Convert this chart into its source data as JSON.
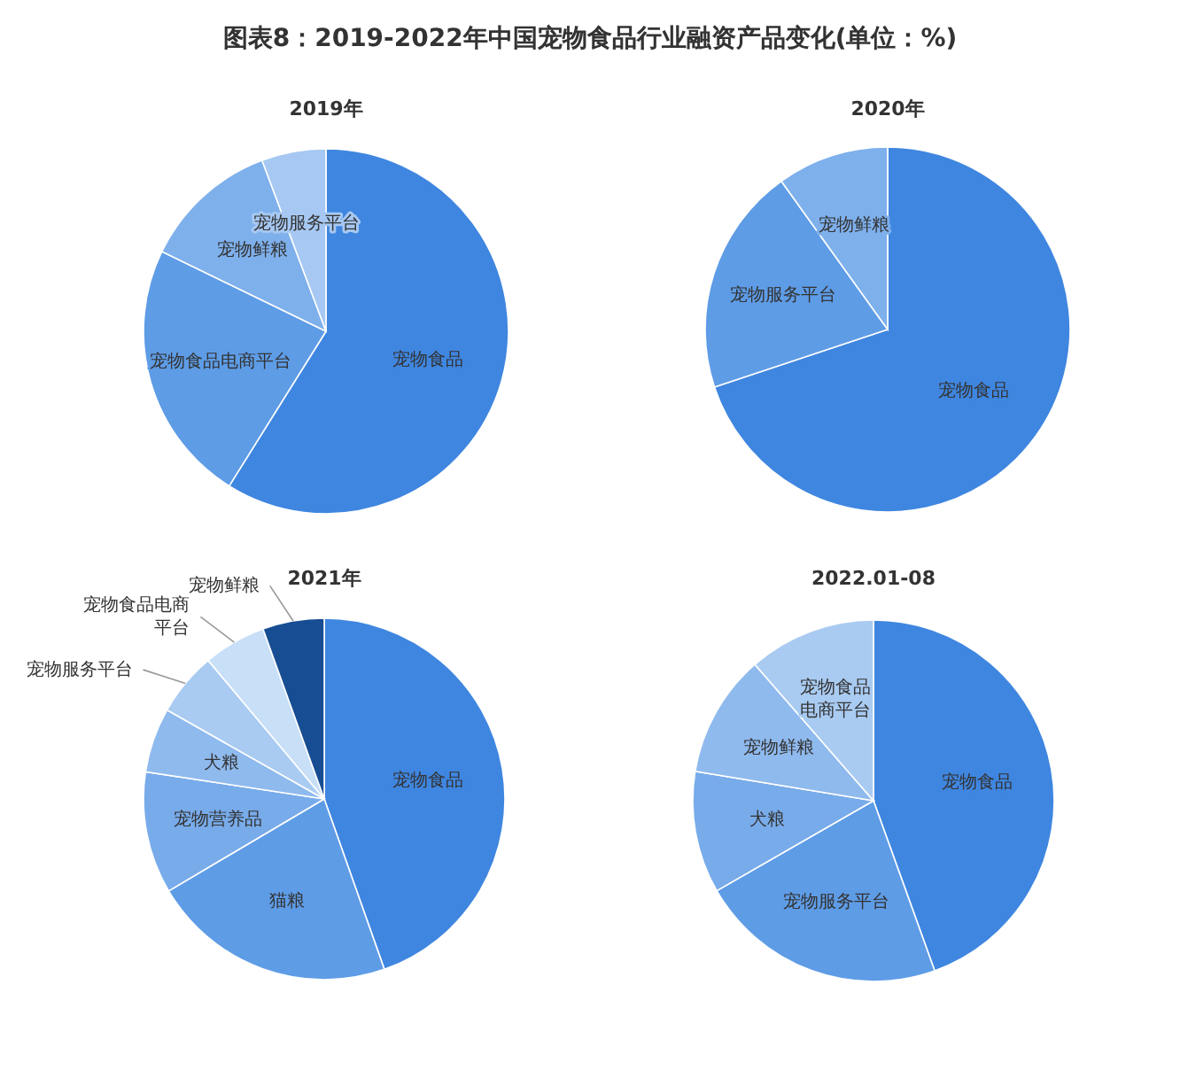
{
  "chart_data": [
    {
      "type": "pie",
      "title": "2019年",
      "annotations": [
        "图表8：2019-2022年中国宠物食品行业融资产品变化(单位：%)"
      ],
      "categories": [
        "宠物食品",
        "宠物食品电商平台",
        "宠物鲜粮",
        "宠物服务平台"
      ],
      "values": [
        58.9,
        23.3,
        12.1,
        5.7
      ],
      "colors": [
        "#3f86e0",
        "#5e9ce6",
        "#7eb0ec",
        "#a6c8f2"
      ]
    },
    {
      "type": "pie",
      "title": "2020年",
      "categories": [
        "宠物食品",
        "宠物服务平台",
        "宠物鲜粮"
      ],
      "values": [
        69.9,
        20.2,
        9.9
      ],
      "colors": [
        "#3f86e0",
        "#5e9ce6",
        "#7eb0ec"
      ]
    },
    {
      "type": "pie",
      "title": "2021年",
      "categories": [
        "宠物食品",
        "猫粮",
        "宠物营养品",
        "犬粮",
        "宠物服务平台",
        "宠物食品电商平台",
        "宠物鲜粮"
      ],
      "values": [
        44.6,
        21.9,
        10.9,
        5.8,
        5.7,
        5.6,
        5.5
      ],
      "colors": [
        "#3f86e0",
        "#5e9ce6",
        "#78abea",
        "#8fbaee",
        "#a9cbf2",
        "#c8dff8",
        "#174d92"
      ]
    },
    {
      "type": "pie",
      "title": "2022.01-08",
      "categories": [
        "宠物食品",
        "宠物服务平台",
        "犬粮",
        "宠物鲜粮",
        "宠物食品电商平台"
      ],
      "values": [
        44.5,
        22.2,
        10.9,
        11.0,
        11.4
      ],
      "colors": [
        "#3f86e0",
        "#5e9ce6",
        "#78abea",
        "#8fbaee",
        "#a9cbf2"
      ]
    }
  ]
}
